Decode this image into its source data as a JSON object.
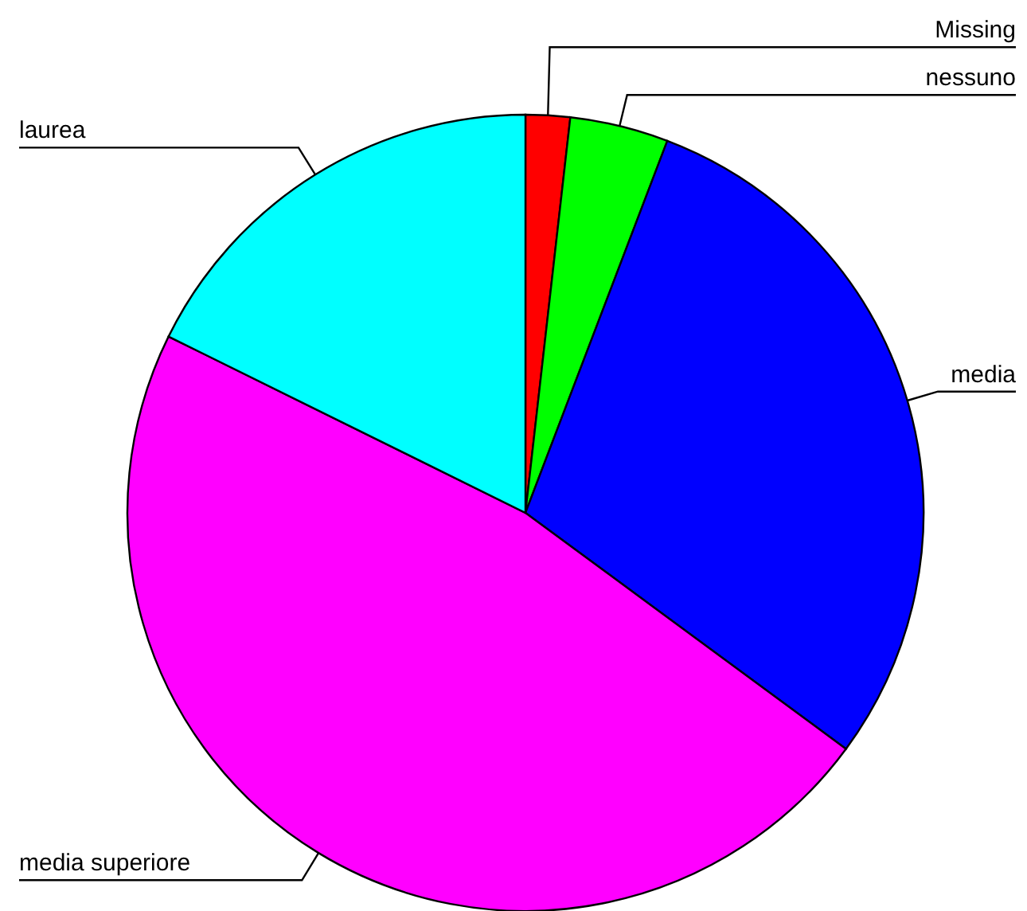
{
  "chart_data": {
    "type": "pie",
    "categories": [
      "Missing",
      "nessuno",
      "media",
      "media superiore",
      "laurea"
    ],
    "values": [
      1.8,
      4.0,
      29.3,
      47.2,
      17.7
    ],
    "colors": [
      "#ff0000",
      "#00ff00",
      "#0000ff",
      "#ff00ff",
      "#00ffff"
    ]
  }
}
